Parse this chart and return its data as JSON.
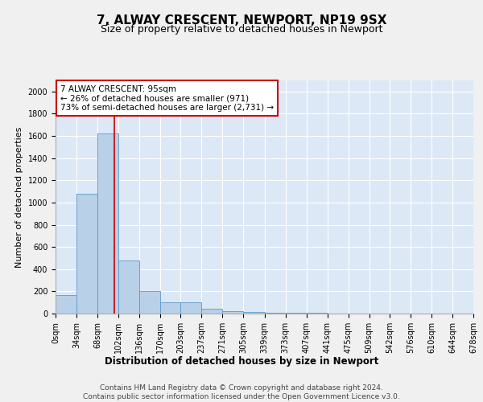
{
  "title1": "7, ALWAY CRESCENT, NEWPORT, NP19 9SX",
  "title2": "Size of property relative to detached houses in Newport",
  "xlabel": "Distribution of detached houses by size in Newport",
  "ylabel": "Number of detached properties",
  "bar_edges": [
    0,
    34,
    68,
    102,
    136,
    170,
    203,
    237,
    271,
    305,
    339,
    373,
    407,
    441,
    475,
    509,
    542,
    576,
    610,
    644,
    678
  ],
  "bar_heights": [
    165,
    1080,
    1620,
    480,
    200,
    100,
    100,
    40,
    25,
    15,
    10,
    10,
    10,
    0,
    0,
    0,
    0,
    0,
    0,
    0
  ],
  "bar_color": "#b8d0e8",
  "bar_edgecolor": "#5a9aca",
  "background_color": "#dce8f5",
  "fig_background_color": "#f0f0f0",
  "grid_color": "#ffffff",
  "property_line_x": 95,
  "property_line_color": "#cc0000",
  "annotation_text": "7 ALWAY CRESCENT: 95sqm\n← 26% of detached houses are smaller (971)\n73% of semi-detached houses are larger (2,731) →",
  "annotation_box_facecolor": "#ffffff",
  "annotation_box_edgecolor": "#cc0000",
  "ylim": [
    0,
    2100
  ],
  "xlim": [
    0,
    678
  ],
  "yticks": [
    0,
    200,
    400,
    600,
    800,
    1000,
    1200,
    1400,
    1600,
    1800,
    2000
  ],
  "xtick_labels": [
    "0sqm",
    "34sqm",
    "68sqm",
    "102sqm",
    "136sqm",
    "170sqm",
    "203sqm",
    "237sqm",
    "271sqm",
    "305sqm",
    "339sqm",
    "373sqm",
    "407sqm",
    "441sqm",
    "475sqm",
    "509sqm",
    "542sqm",
    "576sqm",
    "610sqm",
    "644sqm",
    "678sqm"
  ],
  "footer_text": "Contains HM Land Registry data © Crown copyright and database right 2024.\nContains public sector information licensed under the Open Government Licence v3.0.",
  "title1_fontsize": 11,
  "title2_fontsize": 9,
  "xlabel_fontsize": 8.5,
  "ylabel_fontsize": 8,
  "tick_fontsize": 7,
  "footer_fontsize": 6.5,
  "annotation_fontsize": 7.5
}
